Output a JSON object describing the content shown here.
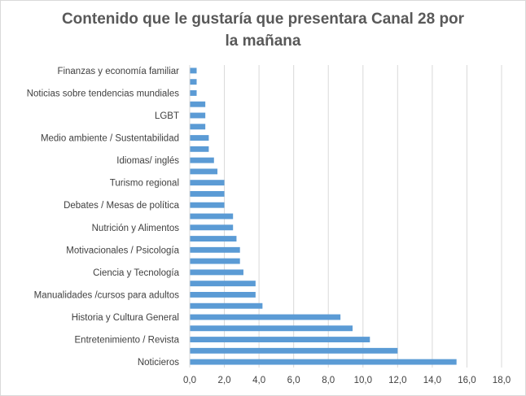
{
  "chart_data": {
    "type": "bar",
    "orientation": "horizontal",
    "title_lines": [
      "Contenido que le gustaría que presentara Canal 28 por",
      "la mañana"
    ],
    "xlabel": "",
    "ylabel": "",
    "xlim": [
      0,
      18
    ],
    "x_ticks": [
      "0,0",
      "2,0",
      "4,0",
      "6,0",
      "8,0",
      "10,0",
      "12,0",
      "14,0",
      "16,0",
      "18,0"
    ],
    "x_tick_values": [
      0,
      2,
      4,
      6,
      8,
      10,
      12,
      14,
      16,
      18
    ],
    "grid": "vertical",
    "legend": "none",
    "bar_color": "#5b9bd5",
    "grid_color": "#d9d9d9",
    "categories": [
      "Noticieros",
      "",
      "Entretenimiento / Revista",
      "",
      "Historia y Cultura General",
      "",
      "Manualidades /cursos para adultos",
      "",
      "Ciencia y Tecnología",
      "",
      "Motivacionales / Psicología",
      "",
      "Nutrición y Alimentos",
      "",
      "Debates / Mesas de política",
      "",
      "Turismo regional",
      "",
      "Idiomas/ inglés",
      "",
      "Medio ambiente / Sustentabilidad",
      "",
      "LGBT",
      "",
      "Noticias sobre tendencias mundiales",
      "",
      "Finanzas y economía familiar"
    ],
    "values": [
      15.4,
      12.0,
      10.4,
      9.4,
      8.7,
      4.2,
      3.8,
      3.8,
      3.1,
      2.9,
      2.9,
      2.7,
      2.5,
      2.5,
      2.0,
      2.0,
      2.0,
      1.6,
      1.4,
      1.1,
      1.1,
      0.9,
      0.9,
      0.9,
      0.4,
      0.4,
      0.4
    ]
  }
}
